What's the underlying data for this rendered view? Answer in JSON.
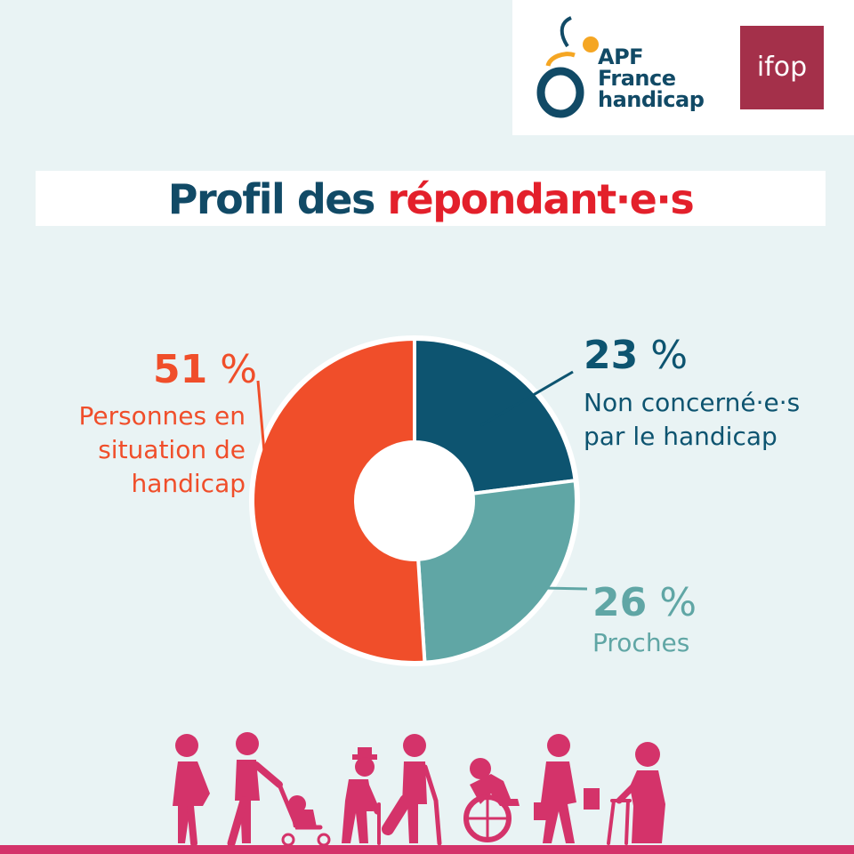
{
  "logos": {
    "apf_lines": [
      "APF",
      "France",
      "handicap"
    ],
    "ifop": "ifop"
  },
  "title": {
    "part1": "Profil des",
    "part2": "répondant·e·s"
  },
  "colors": {
    "orange": "#f04e2a",
    "navy": "#0d5470",
    "teal": "#60a6a5",
    "title_navy": "#114a66",
    "title_red": "#e3202b",
    "pink": "#d4336a"
  },
  "chart_data": {
    "type": "pie",
    "donut": true,
    "slices": [
      {
        "label": "Non concerné·e·s par le handicap",
        "percent_text": "23",
        "value": 23,
        "color": "#0d5470"
      },
      {
        "label": "Proches",
        "percent_text": "26",
        "value": 26,
        "color": "#60a6a5"
      },
      {
        "label": "Personnes en situation de handicap",
        "percent_text": "51",
        "value": 51,
        "color": "#f04e2a"
      }
    ],
    "unit": "%"
  },
  "labels": {
    "p51": {
      "number": "51",
      "unit": "%",
      "lines": [
        "Personnes en",
        "situation de",
        "handicap"
      ]
    },
    "p23": {
      "number": "23",
      "unit": "%",
      "lines": [
        "Non concerné·e·s",
        "par le handicap"
      ]
    },
    "p26": {
      "number": "26",
      "unit": "%",
      "lines": [
        "Proches"
      ]
    }
  },
  "illustration": {
    "icons": [
      "pregnant-woman-icon",
      "parent-with-stroller-icon",
      "elderly-man-with-cane-icon",
      "person-with-crutch-icon",
      "wheelchair-user-icon",
      "person-with-bags-icon",
      "elderly-woman-with-walker-icon"
    ]
  }
}
